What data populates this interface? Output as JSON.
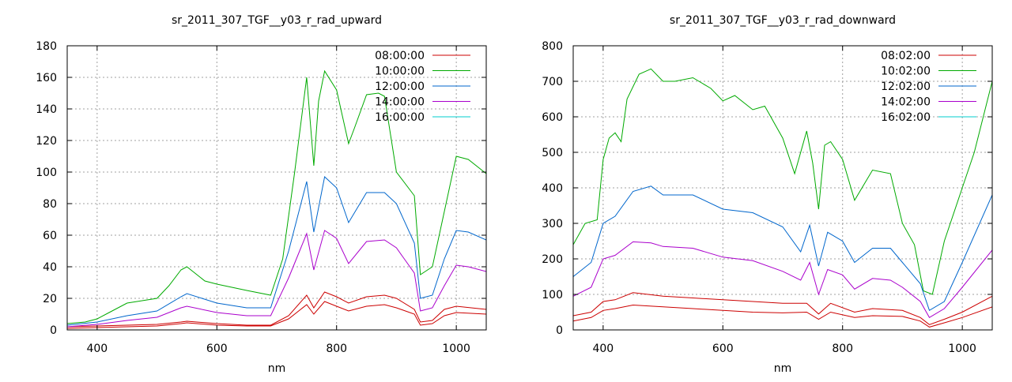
{
  "chart_data": [
    {
      "type": "line",
      "title": "sr_2011_307_TGF__y03_r_rad_upward",
      "xlabel": "nm",
      "ylabel": "",
      "xlim": [
        350,
        1050
      ],
      "ylim": [
        0,
        180
      ],
      "xticks": [
        400,
        600,
        800,
        1000
      ],
      "yticks": [
        0,
        20,
        40,
        60,
        80,
        100,
        120,
        140,
        160,
        180
      ],
      "grid": true,
      "legend": "top-right",
      "series": [
        {
          "name": "08:00:00",
          "color": "#cc0000",
          "x": [
            350,
            400,
            450,
            500,
            540,
            550,
            600,
            650,
            690,
            720,
            750,
            762,
            780,
            800,
            820,
            850,
            880,
            900,
            930,
            940,
            960,
            980,
            1000,
            1050
          ],
          "y": [
            2,
            2.5,
            3,
            3.5,
            5,
            5.5,
            4,
            3,
            3,
            9,
            22,
            14,
            24,
            21,
            17,
            21,
            22,
            20,
            13,
            5,
            6,
            13,
            15,
            13
          ]
        },
        {
          "name": "08:00:00",
          "color": "#cc0000",
          "x": [
            350,
            400,
            450,
            500,
            540,
            550,
            600,
            650,
            690,
            720,
            750,
            762,
            780,
            800,
            820,
            850,
            880,
            900,
            930,
            940,
            960,
            980,
            1000,
            1050
          ],
          "y": [
            1,
            1.5,
            2,
            2.5,
            4,
            4.5,
            3,
            2.5,
            2.5,
            7,
            16,
            10,
            18,
            15,
            12,
            15,
            16,
            14,
            10,
            3,
            4,
            9,
            11,
            10
          ]
        },
        {
          "name": "10:00:00",
          "color": "#00aa00",
          "x": [
            350,
            380,
            400,
            420,
            450,
            500,
            520,
            540,
            550,
            560,
            580,
            600,
            650,
            690,
            710,
            730,
            750,
            762,
            770,
            780,
            800,
            820,
            830,
            850,
            870,
            880,
            900,
            930,
            940,
            960,
            980,
            1000,
            1020,
            1050
          ],
          "y": [
            4,
            5,
            7,
            11,
            17,
            20,
            28,
            38,
            40,
            37,
            31,
            29,
            25,
            22,
            45,
            100,
            160,
            104,
            145,
            164,
            152,
            118,
            128,
            149,
            150,
            148,
            100,
            85,
            35,
            40,
            75,
            110,
            108,
            99
          ]
        },
        {
          "name": "12:00:00",
          "color": "#0066cc",
          "x": [
            350,
            400,
            450,
            500,
            540,
            550,
            600,
            650,
            690,
            720,
            750,
            762,
            780,
            800,
            820,
            850,
            880,
            900,
            930,
            940,
            960,
            980,
            1000,
            1020,
            1050
          ],
          "y": [
            3,
            5,
            9,
            12,
            21,
            23,
            17,
            14,
            14,
            50,
            94,
            62,
            97,
            90,
            68,
            87,
            87,
            80,
            55,
            20,
            22,
            45,
            63,
            62,
            57
          ]
        },
        {
          "name": "14:00:00",
          "color": "#aa00cc",
          "x": [
            350,
            400,
            450,
            500,
            540,
            550,
            600,
            650,
            690,
            720,
            750,
            762,
            780,
            800,
            820,
            850,
            880,
            900,
            930,
            940,
            960,
            980,
            1000,
            1020,
            1050
          ],
          "y": [
            2,
            3.5,
            6,
            8,
            14,
            15,
            11,
            9,
            9,
            33,
            61,
            38,
            63,
            58,
            42,
            56,
            57,
            52,
            36,
            12,
            14,
            28,
            41,
            40,
            37
          ]
        },
        {
          "name": "16:00:00",
          "color": "#00cccc",
          "x": [],
          "y": []
        }
      ]
    },
    {
      "type": "line",
      "title": "sr_2011_307_TGF__y03_r_rad_downward",
      "xlabel": "nm",
      "ylabel": "",
      "xlim": [
        350,
        1050
      ],
      "ylim": [
        0,
        800
      ],
      "xticks": [
        400,
        600,
        800,
        1000
      ],
      "yticks": [
        0,
        100,
        200,
        300,
        400,
        500,
        600,
        700,
        800
      ],
      "grid": true,
      "legend": "top-right",
      "series": [
        {
          "name": "08:02:00",
          "color": "#cc0000",
          "x": [
            350,
            380,
            400,
            420,
            450,
            500,
            550,
            600,
            650,
            700,
            740,
            760,
            780,
            820,
            850,
            900,
            930,
            945,
            970,
            1000,
            1050
          ],
          "y": [
            40,
            50,
            80,
            85,
            105,
            95,
            90,
            85,
            80,
            75,
            75,
            45,
            75,
            50,
            60,
            55,
            35,
            15,
            30,
            50,
            95
          ]
        },
        {
          "name": "08:02:00",
          "color": "#cc0000",
          "x": [
            350,
            380,
            400,
            420,
            450,
            500,
            550,
            600,
            650,
            700,
            740,
            760,
            780,
            820,
            850,
            900,
            930,
            945,
            970,
            1000,
            1050
          ],
          "y": [
            25,
            35,
            55,
            60,
            70,
            65,
            60,
            55,
            50,
            48,
            50,
            30,
            50,
            35,
            40,
            38,
            25,
            8,
            20,
            35,
            65
          ]
        },
        {
          "name": "10:02:00",
          "color": "#00aa00",
          "x": [
            350,
            370,
            390,
            400,
            410,
            420,
            430,
            440,
            460,
            480,
            500,
            520,
            550,
            580,
            600,
            620,
            650,
            670,
            700,
            720,
            740,
            750,
            760,
            770,
            780,
            800,
            820,
            850,
            880,
            900,
            920,
            935,
            950,
            970,
            1000,
            1020,
            1050
          ],
          "y": [
            240,
            300,
            310,
            480,
            540,
            555,
            530,
            650,
            720,
            735,
            700,
            700,
            710,
            680,
            645,
            660,
            620,
            630,
            540,
            440,
            560,
            470,
            340,
            520,
            530,
            480,
            365,
            450,
            440,
            300,
            240,
            110,
            100,
            250,
            400,
            500,
            700
          ]
        },
        {
          "name": "12:02:00",
          "color": "#0066cc",
          "x": [
            350,
            380,
            400,
            420,
            450,
            480,
            500,
            550,
            600,
            650,
            700,
            730,
            745,
            760,
            775,
            800,
            820,
            850,
            880,
            900,
            930,
            945,
            970,
            1000,
            1050
          ],
          "y": [
            150,
            190,
            300,
            320,
            390,
            405,
            380,
            380,
            340,
            330,
            290,
            220,
            295,
            180,
            275,
            250,
            190,
            230,
            230,
            190,
            130,
            55,
            80,
            190,
            380
          ]
        },
        {
          "name": "14:02:00",
          "color": "#aa00cc",
          "x": [
            350,
            380,
            400,
            420,
            450,
            480,
            500,
            550,
            600,
            650,
            700,
            730,
            745,
            760,
            775,
            800,
            820,
            850,
            880,
            900,
            930,
            945,
            970,
            1000,
            1050
          ],
          "y": [
            95,
            120,
            200,
            210,
            248,
            245,
            235,
            230,
            205,
            195,
            165,
            140,
            190,
            100,
            170,
            155,
            115,
            145,
            140,
            120,
            80,
            35,
            60,
            120,
            225
          ]
        },
        {
          "name": "16:02:00",
          "color": "#00cccc",
          "x": [],
          "y": []
        }
      ]
    }
  ]
}
